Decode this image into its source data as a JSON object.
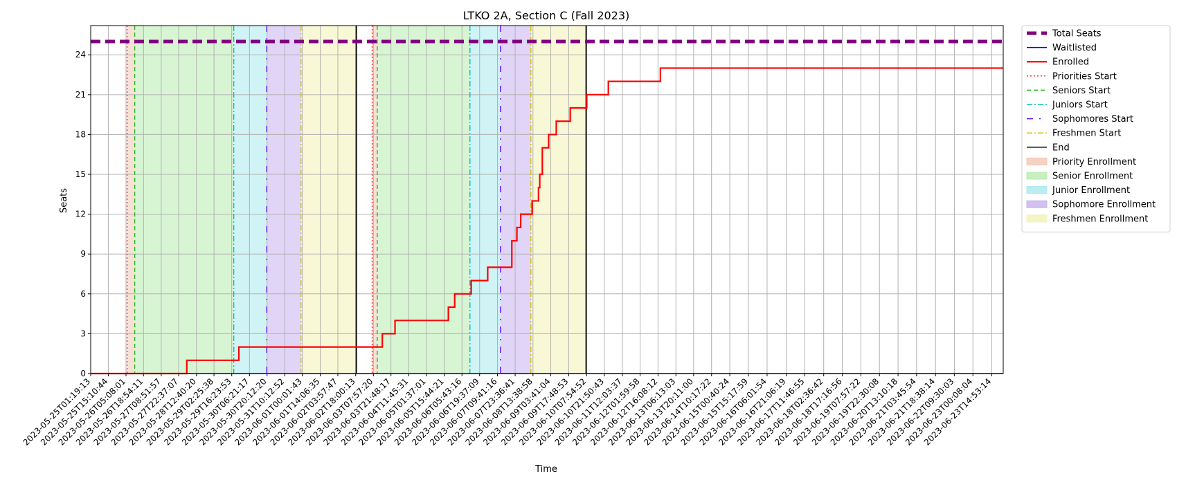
{
  "chart_data": {
    "type": "line",
    "title": "LTKO 2A, Section C (Fall 2023)",
    "xlabel": "Time",
    "ylabel": "Seats",
    "ylim": [
      0,
      26.2
    ],
    "yticks": [
      0,
      3,
      6,
      9,
      12,
      15,
      18,
      21,
      24
    ],
    "x_range": [
      "2023-05-25T01:19:13",
      "2023-06-24T00:00:00"
    ],
    "xtick_labels": [
      "2023-05-25T01:19:13",
      "2023-05-25T15:10:44",
      "2023-05-26T05:08:01",
      "2023-05-26T18:54:11",
      "2023-05-27T08:51:57",
      "2023-05-27T22:37:07",
      "2023-05-28T12:40:20",
      "2023-05-29T02:25:38",
      "2023-05-29T16:23:53",
      "2023-05-30T06:21:17",
      "2023-05-30T20:12:20",
      "2023-05-31T10:12:52",
      "2023-06-01T00:01:43",
      "2023-06-01T14:06:35",
      "2023-06-02T03:57:47",
      "2023-06-02T18:00:13",
      "2023-06-03T07:57:20",
      "2023-06-03T21:48:17",
      "2023-06-04T11:45:31",
      "2023-06-05T01:37:01",
      "2023-06-05T15:44:21",
      "2023-06-06T05:43:16",
      "2023-06-06T19:37:09",
      "2023-06-07T09:41:16",
      "2023-06-07T23:36:41",
      "2023-06-08T13:38:58",
      "2023-06-09T03:41:04",
      "2023-06-09T17:48:53",
      "2023-06-10T07:54:52",
      "2023-06-10T21:50:43",
      "2023-06-11T12:03:37",
      "2023-06-12T01:59:58",
      "2023-06-12T16:08:12",
      "2023-06-13T06:13:03",
      "2023-06-13T20:11:00",
      "2023-06-14T10:17:22",
      "2023-06-15T00:40:24",
      "2023-06-15T15:17:59",
      "2023-06-16T06:01:54",
      "2023-06-16T21:06:19",
      "2023-06-17T11:46:55",
      "2023-06-18T02:36:42",
      "2023-06-18T17:16:56",
      "2023-06-19T07:57:22",
      "2023-06-19T22:30:08",
      "2023-06-20T13:10:18",
      "2023-06-21T03:45:54",
      "2023-06-21T18:38:14",
      "2023-06-22T09:30:03",
      "2023-06-23T00:08:04",
      "2023-06-23T14:53:14"
    ],
    "series": [
      {
        "name": "Total Seats",
        "color": "#800080",
        "style": "dashed",
        "x": [
          "2023-05-25T01:19:13",
          "2023-06-24T00:00:00"
        ],
        "y": [
          25,
          25
        ]
      },
      {
        "name": "Waitlisted",
        "color": "#0000ff",
        "style": "solid",
        "x": [
          "2023-05-25T01:19:13",
          "2023-06-24T00:00:00"
        ],
        "y": [
          0,
          0
        ]
      },
      {
        "name": "Enrolled",
        "color": "#ff0000",
        "style": "step",
        "x": [
          "2023-05-25T01:19:13",
          "2023-05-28T05:00:00",
          "2023-05-29T22:00:00",
          "2023-06-03T11:00:00",
          "2023-06-03T15:00:00",
          "2023-06-04T01:00:00",
          "2023-06-05T19:00:00",
          "2023-06-06T00:00:00",
          "2023-06-06T13:00:00",
          "2023-06-07T02:00:00",
          "2023-06-07T21:00:00",
          "2023-06-08T01:00:00",
          "2023-06-08T04:00:00",
          "2023-06-08T13:00:00",
          "2023-06-08T18:00:00",
          "2023-06-08T19:00:00",
          "2023-06-08T21:00:00",
          "2023-06-09T02:00:00",
          "2023-06-09T08:00:00",
          "2023-06-09T19:00:00",
          "2023-06-10T08:00:00",
          "2023-06-11T01:00:00",
          "2023-06-12T18:00:00",
          "2023-06-14T19:00:00",
          "2023-06-24T00:00:00"
        ],
        "y": [
          0,
          1,
          2,
          2,
          3,
          4,
          5,
          6,
          7,
          8,
          10,
          11,
          12,
          13,
          14,
          15,
          17,
          18,
          19,
          20,
          21,
          22,
          23,
          23,
          23
        ]
      }
    ],
    "vertical_lines": [
      {
        "name": "Priorities Start",
        "color": "#ff3030",
        "style": "dotted",
        "x": [
          "2023-05-26T06:00:00",
          "2023-06-03T07:00:00"
        ]
      },
      {
        "name": "Seniors Start",
        "color": "#22bb22",
        "style": "dashed",
        "x": [
          "2023-05-26T12:00:00",
          "2023-06-03T11:00:00"
        ]
      },
      {
        "name": "Juniors Start",
        "color": "#00bfbf",
        "style": "dashdot",
        "x": [
          "2023-05-29T18:00:00",
          "2023-06-06T12:00:00"
        ]
      },
      {
        "name": "Sophomores Start",
        "color": "#6a0fff",
        "style": "dashdot-sparse",
        "x": [
          "2023-05-30T20:00:00",
          "2023-06-07T12:00:00"
        ]
      },
      {
        "name": "Freshmen Start",
        "color": "#d4c000",
        "style": "dashdot",
        "x": [
          "2023-05-31T23:00:00",
          "2023-06-08T12:00:00"
        ]
      },
      {
        "name": "End",
        "color": "#000000",
        "style": "solid",
        "x": [
          "2023-06-02T18:30:00",
          "2023-06-10T07:30:00"
        ]
      }
    ],
    "spans": [
      {
        "name": "Priority Enrollment",
        "color": "#f4c7b4",
        "ranges": [
          [
            "2023-05-26T06:00:00",
            "2023-05-26T12:00:00"
          ],
          [
            "2023-06-03T07:00:00",
            "2023-06-03T11:00:00"
          ]
        ]
      },
      {
        "name": "Senior Enrollment",
        "color": "#b8ecae",
        "ranges": [
          [
            "2023-05-26T12:00:00",
            "2023-05-29T18:00:00"
          ],
          [
            "2023-06-03T11:00:00",
            "2023-06-06T12:00:00"
          ]
        ]
      },
      {
        "name": "Junior Enrollment",
        "color": "#a9e9ef",
        "ranges": [
          [
            "2023-05-29T18:00:00",
            "2023-05-30T20:00:00"
          ],
          [
            "2023-06-06T12:00:00",
            "2023-06-07T12:00:00"
          ]
        ]
      },
      {
        "name": "Sophomore Enrollment",
        "color": "#c7b2ee",
        "ranges": [
          [
            "2023-05-30T20:00:00",
            "2023-05-31T23:00:00"
          ],
          [
            "2023-06-07T12:00:00",
            "2023-06-08T12:00:00"
          ]
        ]
      },
      {
        "name": "Freshmen Enrollment",
        "color": "#f2f2b4",
        "ranges": [
          [
            "2023-05-31T23:00:00",
            "2023-06-02T18:30:00"
          ],
          [
            "2023-06-08T12:00:00",
            "2023-06-10T07:30:00"
          ]
        ]
      }
    ],
    "legend": {
      "position": "outside-right",
      "entries": [
        {
          "label": "Total Seats",
          "kind": "line",
          "color": "#800080",
          "style": "dashed-thick"
        },
        {
          "label": "Waitlisted",
          "kind": "line",
          "color": "#0000ff",
          "style": "solid"
        },
        {
          "label": "Enrolled",
          "kind": "line",
          "color": "#ff0000",
          "style": "solid-thick"
        },
        {
          "label": "Priorities Start",
          "kind": "line",
          "color": "#ff3030",
          "style": "dotted"
        },
        {
          "label": "Seniors Start",
          "kind": "line",
          "color": "#22bb22",
          "style": "dashed"
        },
        {
          "label": "Juniors Start",
          "kind": "line",
          "color": "#00bfbf",
          "style": "dashdot"
        },
        {
          "label": "Sophomores Start",
          "kind": "line",
          "color": "#6a0fff",
          "style": "dashdot-sparse"
        },
        {
          "label": "Freshmen Start",
          "kind": "line",
          "color": "#d4c000",
          "style": "dashdot"
        },
        {
          "label": "End",
          "kind": "line",
          "color": "#000000",
          "style": "solid"
        },
        {
          "label": "Priority Enrollment",
          "kind": "patch",
          "color": "#f4c7b4"
        },
        {
          "label": "Senior Enrollment",
          "kind": "patch",
          "color": "#b8ecae"
        },
        {
          "label": "Junior Enrollment",
          "kind": "patch",
          "color": "#a9e9ef"
        },
        {
          "label": "Sophomore Enrollment",
          "kind": "patch",
          "color": "#c7b2ee"
        },
        {
          "label": "Freshmen Enrollment",
          "kind": "patch",
          "color": "#f2f2b4"
        }
      ]
    },
    "grid": true
  }
}
